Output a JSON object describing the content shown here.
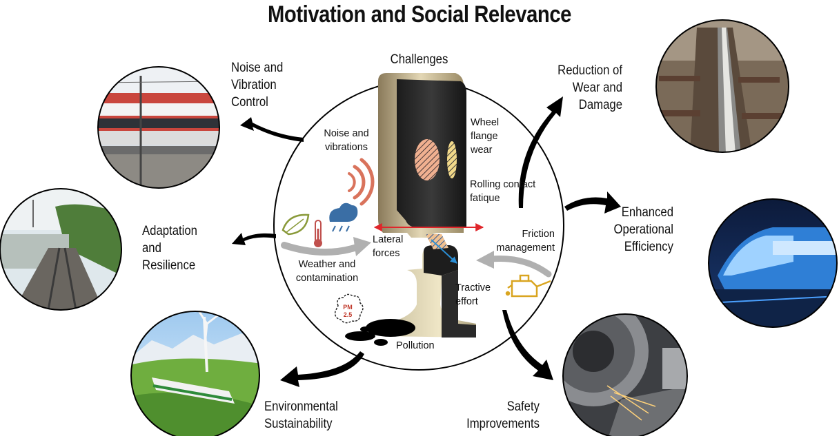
{
  "title": "Motivation and Social Relevance",
  "center_heading": "Challenges",
  "outcomes": {
    "noise": [
      "Noise and",
      "Vibration",
      "Control"
    ],
    "adaptation": [
      "Adaptation",
      "and",
      "Resilience"
    ],
    "environmental": [
      "Environmental",
      "Sustainability"
    ],
    "wear": [
      "Reduction of",
      "Wear and",
      "Damage"
    ],
    "efficiency": [
      "Enhanced",
      "Operational",
      "Efficiency"
    ],
    "safety": [
      "Safety",
      "Improvements"
    ]
  },
  "challenges": {
    "noise": [
      "Noise and",
      "vibrations"
    ],
    "flange": [
      "Wheel",
      "flange",
      "wear"
    ],
    "rcf": [
      "Rolling contact",
      "fatique"
    ],
    "friction": [
      "Friction",
      "management"
    ],
    "lateral": [
      "Lateral",
      "forces"
    ],
    "weather": [
      "Weather and",
      "contamination"
    ],
    "tractive": [
      "Tractive",
      "effort"
    ],
    "pollution": "Pollution",
    "pm_badge": [
      "PM",
      "2.5"
    ]
  },
  "colors": {
    "arrow": "#000000",
    "noise_waves": "#d9735c",
    "flange_hatch": "#f0b090",
    "rcf_hatch": "#f2d98a",
    "lateral_arrow": "#e0262b",
    "slip_arrow": "#2a8fd6",
    "leaf": "#8a9a3a",
    "thermometer": "#c0504d",
    "cloud": "#3a6ea5",
    "oil_can": "#d9a520",
    "gray_arrow": "#b0b0b0"
  },
  "icons": [
    "leaf-icon",
    "thermometer-icon",
    "rain-cloud-icon",
    "oil-can-icon",
    "pm25-icon",
    "sound-waves-icon"
  ]
}
